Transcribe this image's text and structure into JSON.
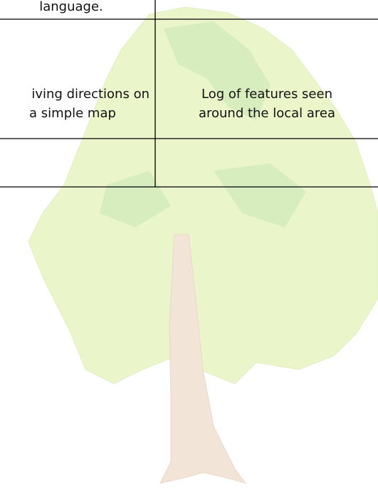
{
  "table": {
    "rows": [
      {
        "cells": [
          {
            "lines": [
              "language."
            ]
          }
        ]
      },
      {
        "cells": [
          {
            "lines": [
              "iving directions on",
              "a simple map"
            ]
          },
          {
            "lines": [
              "Log of features seen",
              "around the local area"
            ]
          }
        ]
      }
    ]
  }
}
